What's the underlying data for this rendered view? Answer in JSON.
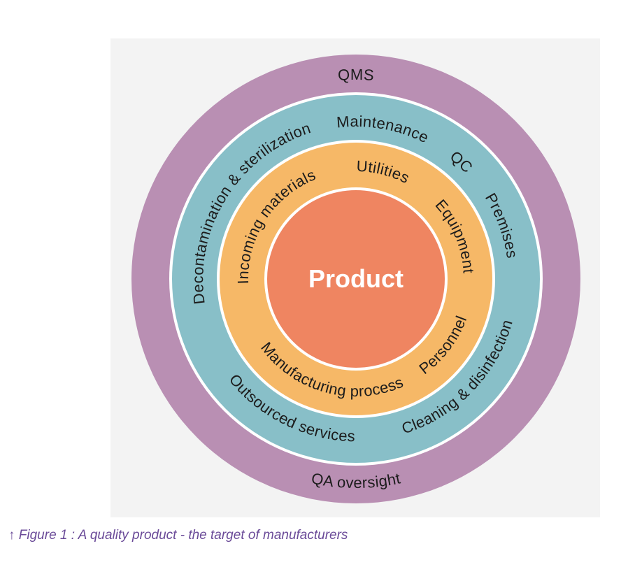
{
  "diagram": {
    "center": {
      "label": "Product"
    },
    "rings": [
      {
        "name": "outer",
        "labels": [
          "QMS",
          "QA oversight"
        ]
      },
      {
        "name": "middle",
        "labels": [
          "Maintenance",
          "QC",
          "Premises",
          "Cleaning & disinfection",
          "Outsourced services",
          "Decontamination & sterilization"
        ]
      },
      {
        "name": "inner",
        "labels": [
          "Utilities",
          "Equipment",
          "Personnel",
          "Manufacturing process",
          "Incoming materials"
        ]
      }
    ]
  },
  "caption": "↑ Figure 1 : A quality product - the target of manufacturers"
}
